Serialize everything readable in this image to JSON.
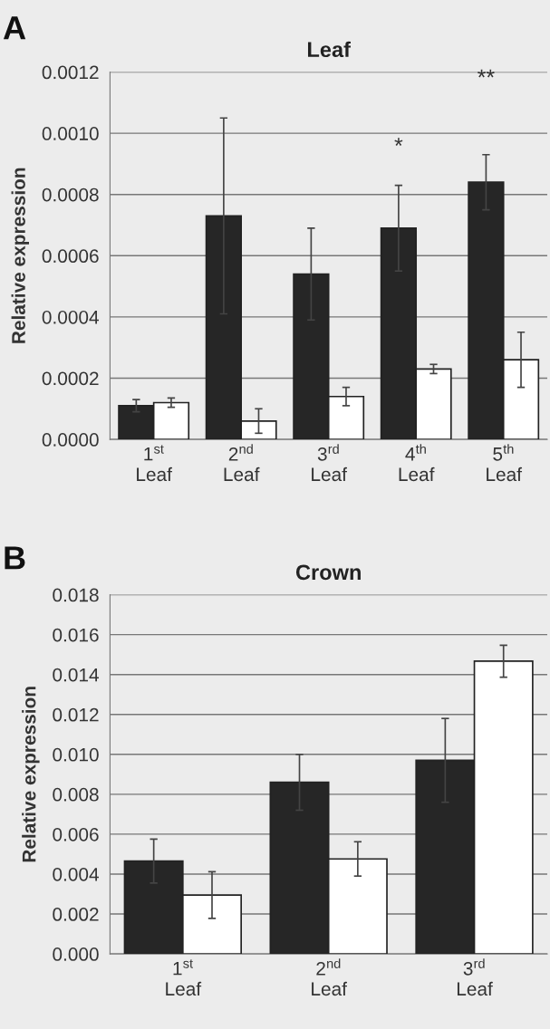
{
  "chart_data": [
    {
      "type": "bar",
      "title": "Leaf",
      "ylabel": "Relative expression",
      "categories": [
        "1$^{st}$\nLeaf",
        "2$^{nd}$\nLeaf",
        "3$^{rd}$\nLeaf",
        "4$^{th}$\nLeaf",
        "5$^{th}$\nLeaf"
      ],
      "series": [
        {
          "color": "#262626",
          "values": [
            0.00011,
            0.00073,
            0.00054,
            0.00069,
            0.00084
          ],
          "errors": [
            2e-05,
            0.00032,
            0.00015,
            0.00014,
            9e-05
          ]
        },
        {
          "color": "#ffffff",
          "values": [
            0.00012,
            6e-05,
            0.00014,
            0.00023,
            0.00026
          ],
          "errors": [
            1.5e-05,
            4e-05,
            3e-05,
            1.5e-05,
            9e-05
          ]
        }
      ],
      "ylim": [
        0,
        0.0012
      ],
      "yticks": [
        {
          "value": 0,
          "label": "0.0000"
        },
        {
          "value": 0.0002,
          "label": "0.0002"
        },
        {
          "value": 0.0004,
          "label": "0.0004"
        },
        {
          "value": 0.0006,
          "label": "0.0006"
        },
        {
          "value": 0.0008,
          "label": "0.0008"
        },
        {
          "value": 0.001,
          "label": "0.0010"
        },
        {
          "value": 0.0012,
          "label": "0.0012"
        }
      ],
      "grid": "y",
      "annotations": [
        "A",
        "*",
        "**"
      ]
    },
    {
      "type": "bar",
      "title": "Crown",
      "ylabel": "Relative expression",
      "categories": [
        "1$^{st}$\nLeaf",
        "2$^{nd}$\nLeaf",
        "3$^{rd}$\nLeaf"
      ],
      "series": [
        {
          "color": "#262626",
          "values": [
            0.00465,
            0.0086,
            0.0097
          ],
          "errors": [
            0.0011,
            0.0014,
            0.0021
          ]
        },
        {
          "color": "#ffffff",
          "values": [
            0.00295,
            0.00476,
            0.01467
          ],
          "errors": [
            0.00117,
            0.00086,
            0.0008
          ]
        }
      ],
      "ylim": [
        0,
        0.018
      ],
      "yticks": [
        {
          "value": 0,
          "label": "0.000"
        },
        {
          "value": 0.002,
          "label": "0.002"
        },
        {
          "value": 0.004,
          "label": "0.004"
        },
        {
          "value": 0.006,
          "label": "0.006"
        },
        {
          "value": 0.008,
          "label": "0.008"
        },
        {
          "value": 0.01,
          "label": "0.010"
        },
        {
          "value": 0.012,
          "label": "0.012"
        },
        {
          "value": 0.014,
          "label": "0.014"
        },
        {
          "value": 0.016,
          "label": "0.016"
        },
        {
          "value": 0.018,
          "label": "0.018"
        }
      ],
      "grid": "y",
      "annotations": [
        "B"
      ]
    }
  ]
}
